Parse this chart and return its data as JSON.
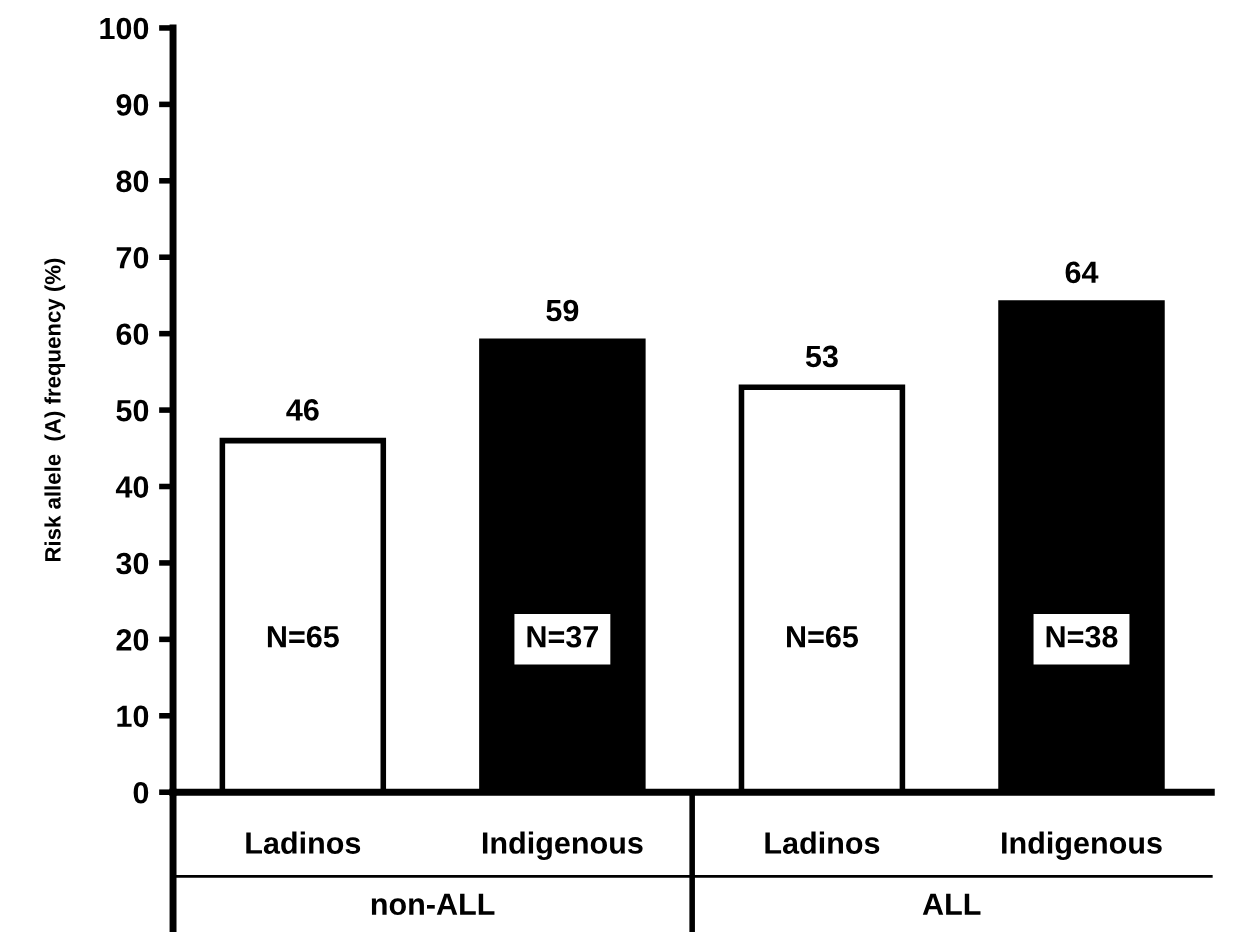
{
  "chart_data": {
    "type": "bar",
    "ylabel": "Risk allele  (A) frequency (%)",
    "categories": [
      "Ladinos",
      "Indigenous",
      "Ladinos",
      "Indigenous"
    ],
    "values": [
      46,
      59,
      53,
      64
    ],
    "colors": [
      "#ffffff",
      "#000000",
      "#ffffff",
      "#000000"
    ],
    "ylim": [
      0,
      100
    ],
    "yticks": [
      0,
      10,
      20,
      30,
      40,
      50,
      60,
      70,
      80,
      90,
      100
    ],
    "data_labels": true,
    "grid": false,
    "annotations": [
      "N=65",
      "N=37",
      "N=65",
      "N=38",
      "non-ALL",
      "ALL"
    ]
  }
}
